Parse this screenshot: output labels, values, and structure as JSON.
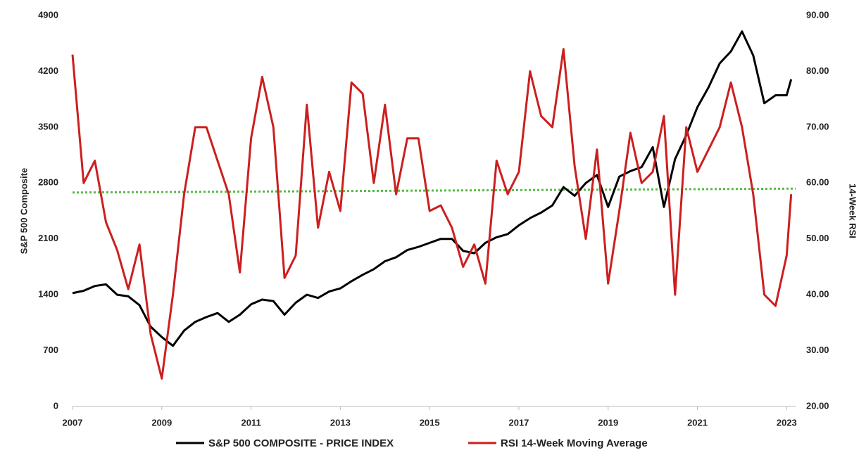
{
  "chart_data": {
    "type": "line",
    "y_label": "S&P 500 Composite",
    "y2_label": "14-Week RSI",
    "x": [
      2007,
      2007.25,
      2007.5,
      2007.75,
      2008,
      2008.25,
      2008.5,
      2008.75,
      2009,
      2009.25,
      2009.5,
      2009.75,
      2010,
      2010.25,
      2010.5,
      2010.75,
      2011,
      2011.25,
      2011.5,
      2011.75,
      2012,
      2012.25,
      2012.5,
      2012.75,
      2013,
      2013.25,
      2013.5,
      2013.75,
      2014,
      2014.25,
      2014.5,
      2014.75,
      2015,
      2015.25,
      2015.5,
      2015.75,
      2016,
      2016.25,
      2016.5,
      2016.75,
      2017,
      2017.25,
      2017.5,
      2017.75,
      2018,
      2018.25,
      2018.5,
      2018.75,
      2019,
      2019.25,
      2019.5,
      2019.75,
      2020,
      2020.25,
      2020.5,
      2020.75,
      2021,
      2021.25,
      2021.5,
      2021.75,
      2022,
      2022.25,
      2022.5,
      2022.75,
      2023,
      2023.1
    ],
    "series": [
      {
        "name": "S&P 500 COMPOSITE - PRICE INDEX",
        "color": "#000000",
        "axis": "y",
        "values": [
          1420,
          1450,
          1510,
          1530,
          1400,
          1380,
          1270,
          1000,
          870,
          760,
          950,
          1060,
          1120,
          1170,
          1060,
          1150,
          1280,
          1340,
          1320,
          1150,
          1300,
          1400,
          1360,
          1440,
          1480,
          1570,
          1650,
          1720,
          1820,
          1870,
          1960,
          2000,
          2050,
          2100,
          2100,
          1950,
          1920,
          2050,
          2120,
          2160,
          2270,
          2360,
          2430,
          2520,
          2750,
          2640,
          2800,
          2900,
          2500,
          2880,
          2950,
          3000,
          3250,
          2500,
          3100,
          3400,
          3750,
          4000,
          4300,
          4450,
          4700,
          4400,
          3800,
          3900,
          3900,
          4100
        ]
      },
      {
        "name": "RSI 14-Week Moving Average",
        "color": "#cc1f1f",
        "axis": "y2",
        "values": [
          83,
          60,
          64,
          53,
          48,
          41,
          49,
          33,
          25,
          40,
          58,
          70,
          70,
          64,
          58,
          44,
          68,
          79,
          70,
          43,
          47,
          74,
          52,
          62,
          55,
          78,
          76,
          60,
          74,
          58,
          68,
          68,
          55,
          56,
          52,
          45,
          49,
          42,
          64,
          58,
          62,
          80,
          72,
          70,
          84,
          63,
          50,
          66,
          42,
          55,
          69,
          60,
          62,
          72,
          40,
          70,
          62,
          66,
          70,
          78,
          70,
          58,
          40,
          38,
          47,
          58
        ]
      }
    ],
    "reference_line": {
      "color": "#55bb44",
      "axis": "y2",
      "values": [
        58.3,
        59.0
      ]
    },
    "xlim": [
      2007,
      2023.2
    ],
    "xticks": [
      2007,
      2009,
      2011,
      2013,
      2015,
      2017,
      2019,
      2021,
      2023
    ],
    "ylim": [
      0,
      4900
    ],
    "yticks": [
      0,
      700,
      1400,
      2100,
      2800,
      3500,
      4200,
      4900
    ],
    "y2lim": [
      20,
      90
    ],
    "y2ticks": [
      {
        "value": 20,
        "label": "20.00"
      },
      {
        "value": 30,
        "label": "30.00"
      },
      {
        "value": 40,
        "label": "40.00"
      },
      {
        "value": 50,
        "label": "50.00"
      },
      {
        "value": 60,
        "label": "60.00"
      },
      {
        "value": 70,
        "label": "70.00"
      },
      {
        "value": 80,
        "label": "80.00"
      },
      {
        "value": 90,
        "label": "90.00"
      }
    ],
    "legend": "bottom"
  }
}
